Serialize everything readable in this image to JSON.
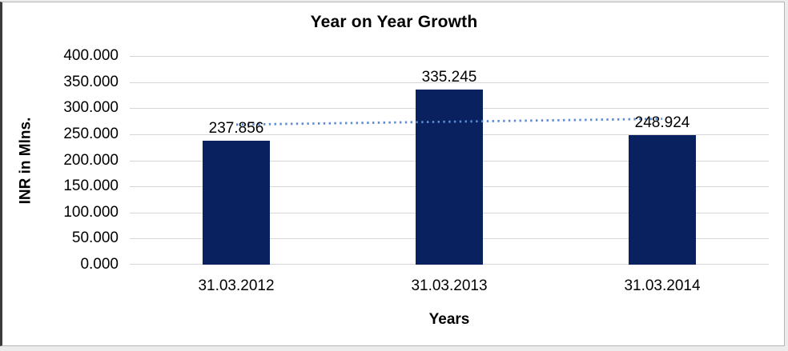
{
  "chart_data": {
    "type": "bar",
    "title": "Year on Year Growth",
    "categories": [
      "31.03.2012",
      "31.03.2013",
      "31.03.2014"
    ],
    "values": [
      237.856,
      335.245,
      248.924
    ],
    "data_labels": [
      "237.856",
      "335.245",
      "248.924"
    ],
    "xlabel": "Years",
    "ylabel": "INR in Mlns.",
    "ylim": [
      0,
      400
    ],
    "ytick_step": 50,
    "ytick_labels": [
      "400.000",
      "350.000",
      "300.000",
      "250.000",
      "200.000",
      "150.000",
      "100.000",
      "50.000",
      "0.000"
    ],
    "grid": true,
    "legend": "none",
    "trendline": {
      "type": "linear",
      "style": "dotted"
    },
    "colors": {
      "bar": "#0A2160",
      "trendline": "#5B8BD2",
      "gridline": "#D6D6D6",
      "text": "#000000"
    }
  }
}
